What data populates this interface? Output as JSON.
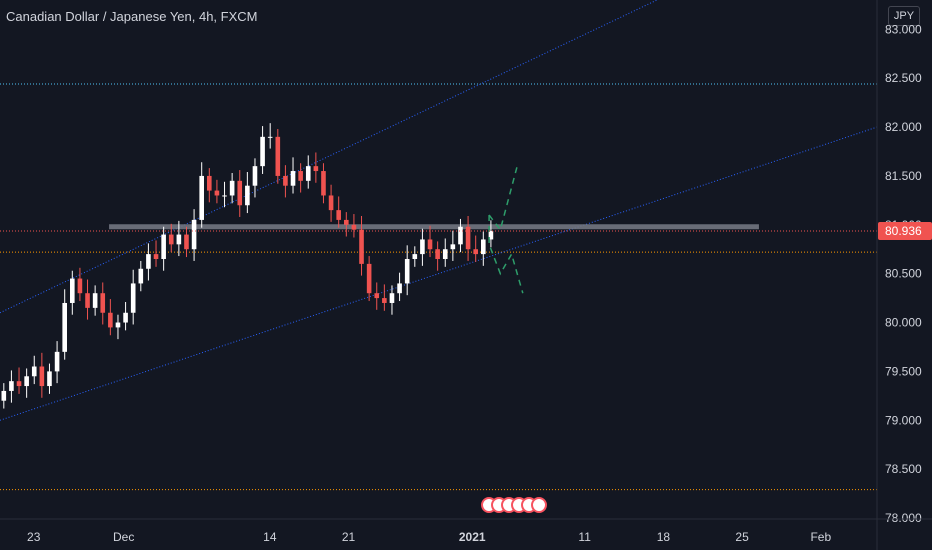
{
  "header": {
    "title": "Canadian Dollar / Japanese Yen, 4h, FXCM",
    "currency": "JPY"
  },
  "colors": {
    "background": "#131722",
    "bull": "#ffffff",
    "bear": "#f05350",
    "channel": "#2962ff",
    "horizontal_cyan": "#4fc3f7",
    "horizontal_orange": "#ff9800",
    "resistance_zone": "#787b86",
    "projection": "#2e9e6b"
  },
  "chart_data": {
    "type": "candlestick",
    "symbol": "CADJPY",
    "interval": "4h",
    "ylim": [
      78.0,
      83.3
    ],
    "yticks": [
      "78.000",
      "78.500",
      "79.000",
      "79.500",
      "80.000",
      "80.500",
      "81.000",
      "81.500",
      "82.000",
      "82.500",
      "83.000"
    ],
    "xticks": [
      {
        "label": "23",
        "day": 0
      },
      {
        "label": "Dec",
        "day": 8
      },
      {
        "label": "14",
        "day": 21
      },
      {
        "label": "21",
        "day": 28
      },
      {
        "label": "2021",
        "day": 39
      },
      {
        "label": "11",
        "day": 49
      },
      {
        "label": "18",
        "day": 56
      },
      {
        "label": "25",
        "day": 63
      },
      {
        "label": "Feb",
        "day": 70
      }
    ],
    "xlim_days": [
      -3,
      75
    ],
    "last_price": "80.936",
    "horizontal_levels": [
      {
        "value": 82.44,
        "style": "cyan-dotted"
      },
      {
        "value": 80.72,
        "style": "orange-dotted"
      },
      {
        "value": 78.29,
        "style": "orange-dotted"
      }
    ],
    "resistance_zone": {
      "value": 80.98,
      "from_day": 6.7,
      "to_day": 64.5
    },
    "channel_upper": [
      [
        -3,
        80.1
      ],
      [
        60,
        83.55
      ]
    ],
    "channel_lower": [
      [
        -3,
        79.0
      ],
      [
        75,
        82.0
      ]
    ],
    "closes": [
      79.3,
      79.4,
      79.35,
      79.45,
      79.55,
      79.35,
      79.5,
      79.7,
      80.2,
      80.45,
      80.3,
      80.15,
      80.3,
      80.1,
      79.95,
      80.0,
      80.1,
      80.4,
      80.55,
      80.7,
      80.65,
      80.9,
      80.8,
      80.9,
      80.75,
      81.05,
      81.5,
      81.35,
      81.3,
      81.3,
      81.45,
      81.2,
      81.4,
      81.6,
      81.9,
      81.9,
      81.5,
      81.4,
      81.55,
      81.45,
      81.6,
      81.55,
      81.3,
      81.15,
      81.05,
      81.0,
      80.95,
      80.6,
      80.3,
      80.25,
      80.2,
      80.3,
      80.4,
      80.65,
      80.7,
      80.85,
      80.75,
      80.65,
      80.75,
      80.8,
      80.98,
      80.75,
      80.7,
      80.85,
      80.936
    ],
    "projection_path": [
      [
        40.5,
        81.1
      ],
      [
        41.5,
        80.95
      ],
      [
        43,
        81.6
      ],
      [
        40.5,
        80.8
      ],
      [
        41.5,
        80.5
      ],
      [
        42.5,
        80.7
      ],
      [
        43.5,
        80.3
      ]
    ]
  }
}
